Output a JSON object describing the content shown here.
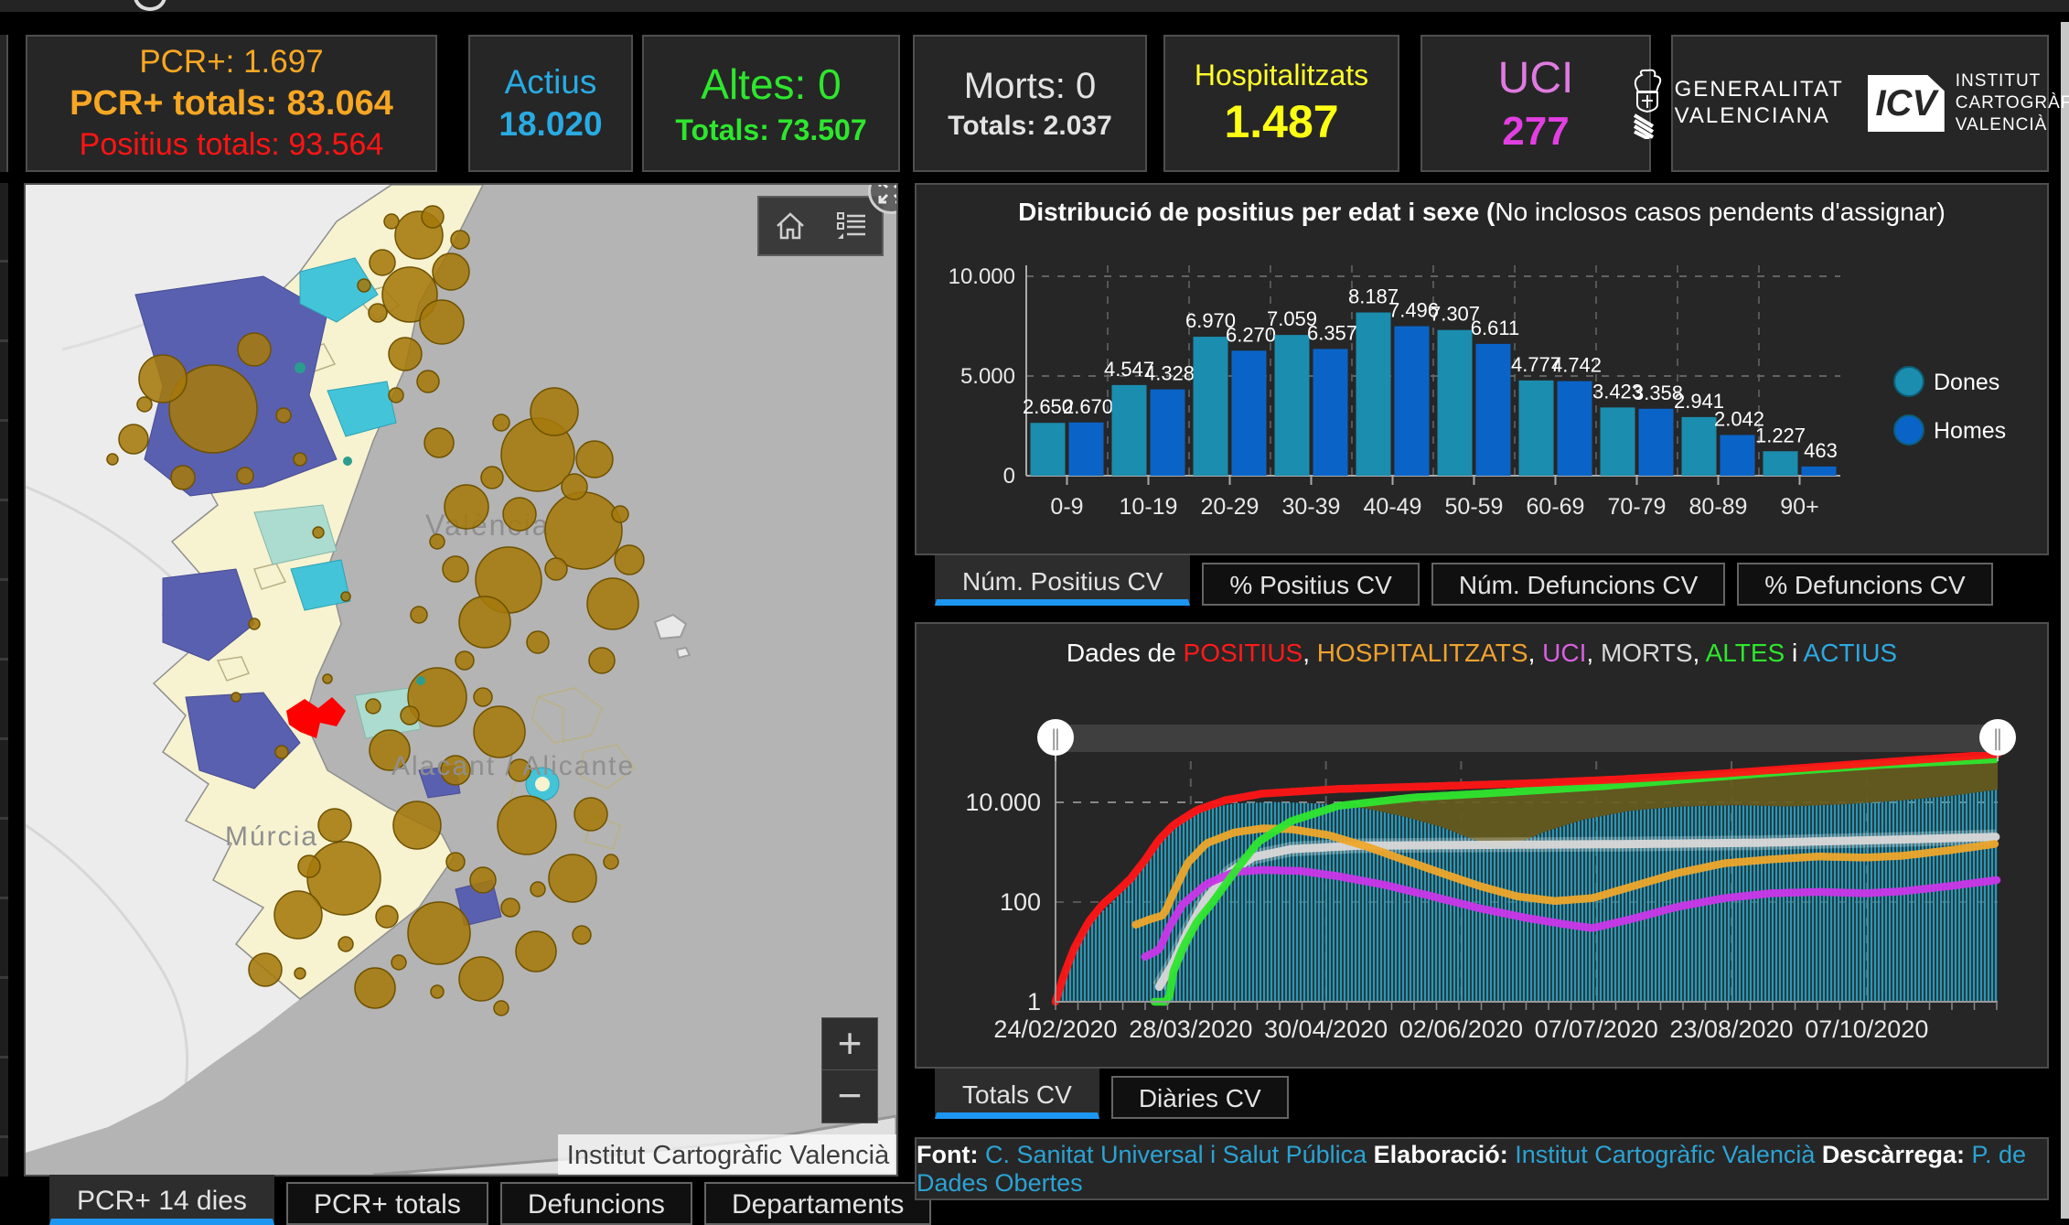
{
  "cards": {
    "pcr": {
      "line1": "PCR+: 1.697",
      "line2": "PCR+ totals: 83.064",
      "line3": "Positius totals: 93.564"
    },
    "actius": {
      "line1": "Actius",
      "line2": "18.020"
    },
    "altes": {
      "line1": "Altes: 0",
      "line2": "Totals: 73.507"
    },
    "morts": {
      "line1": "Morts: 0",
      "line2": "Totals: 2.037"
    },
    "hospitalitzats": {
      "line1": "Hospitalitzats",
      "line2": "1.487"
    },
    "uci": {
      "line1": "UCI",
      "line2": "277"
    }
  },
  "logos": {
    "generalitat_line1": "GENERALITAT",
    "generalitat_line2": "VALENCIANA",
    "icv_mark": "ICV",
    "icv_line1": "INSTITUT",
    "icv_line2": "CARTOGRÀFIC",
    "icv_line3": "VALENCIÀ"
  },
  "map": {
    "labels": {
      "valencia": "València",
      "alacant": "Alacant / Alicante",
      "murcia": "Múrcia"
    },
    "attribution": "Institut Cartogràfic Valencià",
    "zoom_in": "+",
    "zoom_out": "−",
    "slider_glyph": "∥",
    "tabs": {
      "labels": [
        "PCR+ 14 dies",
        "PCR+ totals",
        "Defuncions",
        "Departaments"
      ],
      "active": 0
    }
  },
  "age_chart": {
    "title_bold": "Distribució de positius per edat i sexe (",
    "title_normal": "No inclosos casos pendents d'assignar)",
    "tabs": {
      "labels": [
        "Núm. Positius CV",
        "% Positius CV",
        "Núm. Defuncions CV",
        "% Defuncions CV"
      ],
      "active": 0
    }
  },
  "time_chart": {
    "title_parts": [
      {
        "t": "Dades de ",
        "c": "#ffffff"
      },
      {
        "t": "POSITIUS",
        "c": "#ff1a1a"
      },
      {
        "t": ", ",
        "c": "#ffffff"
      },
      {
        "t": "HOSPITALITZATS",
        "c": "#efa22e"
      },
      {
        "t": ", ",
        "c": "#ffffff"
      },
      {
        "t": "UCI",
        "c": "#d95fe0"
      },
      {
        "t": ", ",
        "c": "#ffffff"
      },
      {
        "t": "MORTS",
        "c": "#d8d8d8"
      },
      {
        "t": ", ",
        "c": "#ffffff"
      },
      {
        "t": "ALTES",
        "c": "#2ee62e"
      },
      {
        "t": " i ",
        "c": "#ffffff"
      },
      {
        "t": "ACTIUS",
        "c": "#2da8e0"
      }
    ],
    "tabs": {
      "labels": [
        "Totals CV",
        "Diàries CV"
      ],
      "active": 0
    }
  },
  "footer": {
    "parts": [
      {
        "t": "Font: ",
        "bold": true
      },
      {
        "t": "C. Sanitat Universal i Salut Pública",
        "link": true
      },
      {
        "t": " Elaboració: ",
        "bold": true
      },
      {
        "t": "Institut Cartogràfic Valencià",
        "link": true
      },
      {
        "t": " Descàrrega: ",
        "bold": true
      },
      {
        "t": "P. de Dades Obertes",
        "link": true
      }
    ]
  },
  "colors": {
    "accent_tab": "#1d96f2",
    "dones": "#1b8dae",
    "homes": "#0a64c8",
    "positius": "#ff1515",
    "altes": "#2ee62e",
    "morts": "#d8d8d8",
    "hospitalitzats": "#eda62a",
    "uci_line": "#c936e8",
    "actius_bars": "#2a9fbf",
    "link": "#2ba3d4",
    "panel": "#262626",
    "border": "#4e4e4e"
  },
  "chart_data": [
    {
      "type": "bar",
      "title": "Distribució de positius per edat i sexe (No inclosos casos pendents d'assignar)",
      "categories": [
        "0-9",
        "10-19",
        "20-29",
        "30-39",
        "40-49",
        "50-59",
        "60-69",
        "70-79",
        "80-89",
        "90+"
      ],
      "series": [
        {
          "name": "Dones",
          "color": "#1b8dae",
          "values": [
            2650,
            4547,
            6970,
            7059,
            8187,
            7307,
            4777,
            3423,
            2941,
            1227
          ]
        },
        {
          "name": "Homes",
          "color": "#0a64c8",
          "values": [
            2670,
            4328,
            6270,
            6357,
            7496,
            6611,
            4742,
            3358,
            2042,
            463
          ]
        }
      ],
      "ylim": [
        0,
        10000
      ],
      "yticks": {
        "values": [
          10000,
          5000,
          0
        ],
        "labels": [
          "10.000",
          "5.000",
          "0"
        ]
      },
      "grid": true,
      "legend_position": "right"
    },
    {
      "type": "line",
      "title": "Dades de POSITIUS, HOSPITALITZATS, UCI, MORTS, ALTES i ACTIUS",
      "x_labels": [
        "24/02/2020",
        "28/03/2020",
        "30/04/2020",
        "02/06/2020",
        "07/07/2020",
        "23/08/2020",
        "07/10/2020"
      ],
      "y_scale": "log",
      "ylim": [
        1,
        100000
      ],
      "yticks": {
        "values": [
          10000,
          100,
          1
        ],
        "labels": [
          "10.000",
          "100",
          "1"
        ]
      },
      "series": [
        {
          "name": "ACTIUS",
          "color": "#2a9fbf",
          "render": "bars",
          "points": [
            [
              0.005,
              2
            ],
            [
              0.02,
              12
            ],
            [
              0.04,
              45
            ],
            [
              0.06,
              100
            ],
            [
              0.075,
              200
            ],
            [
              0.09,
              450
            ],
            [
              0.105,
              1100
            ],
            [
              0.12,
              2500
            ],
            [
              0.14,
              5000
            ],
            [
              0.165,
              7800
            ],
            [
              0.19,
              9500
            ],
            [
              0.23,
              10200
            ],
            [
              0.28,
              9500
            ],
            [
              0.33,
              7500
            ],
            [
              0.37,
              5200
            ],
            [
              0.41,
              3200
            ],
            [
              0.44,
              1900
            ],
            [
              0.465,
              1300
            ],
            [
              0.49,
              1500
            ],
            [
              0.52,
              2600
            ],
            [
              0.56,
              4500
            ],
            [
              0.61,
              6800
            ],
            [
              0.66,
              8200
            ],
            [
              0.72,
              8800
            ],
            [
              0.78,
              8300
            ],
            [
              0.84,
              9200
            ],
            [
              0.9,
              11000
            ],
            [
              0.95,
              13500
            ],
            [
              1,
              18020
            ]
          ]
        },
        {
          "name": "MORTS",
          "color": "#d8d8d8",
          "render": "line",
          "points": [
            [
              0.11,
              2
            ],
            [
              0.125,
              6
            ],
            [
              0.14,
              25
            ],
            [
              0.16,
              120
            ],
            [
              0.185,
              400
            ],
            [
              0.21,
              800
            ],
            [
              0.25,
              1150
            ],
            [
              0.32,
              1350
            ],
            [
              0.45,
              1400
            ],
            [
              0.6,
              1450
            ],
            [
              0.75,
              1550
            ],
            [
              0.9,
              1800
            ],
            [
              1,
              2037
            ]
          ]
        },
        {
          "name": "HOSPITALITZATS",
          "color": "#eda62a",
          "render": "line",
          "points": [
            [
              0.085,
              35
            ],
            [
              0.1,
              45
            ],
            [
              0.115,
              55
            ],
            [
              0.125,
              150
            ],
            [
              0.14,
              600
            ],
            [
              0.16,
              1500
            ],
            [
              0.19,
              2500
            ],
            [
              0.22,
              3000
            ],
            [
              0.25,
              2900
            ],
            [
              0.29,
              2200
            ],
            [
              0.33,
              1300
            ],
            [
              0.37,
              700
            ],
            [
              0.41,
              380
            ],
            [
              0.45,
              210
            ],
            [
              0.49,
              130
            ],
            [
              0.53,
              105
            ],
            [
              0.57,
              120
            ],
            [
              0.61,
              200
            ],
            [
              0.66,
              380
            ],
            [
              0.71,
              600
            ],
            [
              0.76,
              720
            ],
            [
              0.81,
              820
            ],
            [
              0.86,
              780
            ],
            [
              0.9,
              850
            ],
            [
              0.95,
              1100
            ],
            [
              1,
              1487
            ]
          ]
        },
        {
          "name": "UCI",
          "color": "#c936e8",
          "render": "line",
          "points": [
            [
              0.095,
              8
            ],
            [
              0.11,
              11
            ],
            [
              0.12,
              30
            ],
            [
              0.135,
              90
            ],
            [
              0.16,
              230
            ],
            [
              0.19,
              400
            ],
            [
              0.22,
              440
            ],
            [
              0.26,
              420
            ],
            [
              0.3,
              330
            ],
            [
              0.35,
              220
            ],
            [
              0.4,
              130
            ],
            [
              0.45,
              75
            ],
            [
              0.5,
              48
            ],
            [
              0.54,
              36
            ],
            [
              0.57,
              30
            ],
            [
              0.61,
              45
            ],
            [
              0.66,
              80
            ],
            [
              0.71,
              120
            ],
            [
              0.76,
              150
            ],
            [
              0.81,
              160
            ],
            [
              0.86,
              150
            ],
            [
              0.9,
              165
            ],
            [
              0.95,
              210
            ],
            [
              1,
              277
            ]
          ]
        },
        {
          "name": "ALTES",
          "color": "#2ee62e",
          "render": "line",
          "points": [
            [
              0.105,
              1
            ],
            [
              0.12,
              1
            ],
            [
              0.125,
              4
            ],
            [
              0.135,
              12
            ],
            [
              0.15,
              40
            ],
            [
              0.165,
              90
            ],
            [
              0.19,
              400
            ],
            [
              0.215,
              1600
            ],
            [
              0.25,
              4200
            ],
            [
              0.3,
              8500
            ],
            [
              0.38,
              12500
            ],
            [
              0.48,
              16000
            ],
            [
              0.58,
              21000
            ],
            [
              0.68,
              30000
            ],
            [
              0.78,
              42000
            ],
            [
              0.88,
              57000
            ],
            [
              1,
              73500
            ]
          ]
        },
        {
          "name": "POSITIUS",
          "color": "#ff1515",
          "render": "line",
          "points": [
            [
              0,
              1
            ],
            [
              0.01,
              4
            ],
            [
              0.02,
              12
            ],
            [
              0.035,
              40
            ],
            [
              0.05,
              90
            ],
            [
              0.065,
              160
            ],
            [
              0.08,
              300
            ],
            [
              0.095,
              700
            ],
            [
              0.11,
              1800
            ],
            [
              0.125,
              3500
            ],
            [
              0.15,
              7000
            ],
            [
              0.18,
              11000
            ],
            [
              0.22,
              15000
            ],
            [
              0.3,
              18500
            ],
            [
              0.4,
              21000
            ],
            [
              0.5,
              24000
            ],
            [
              0.6,
              29000
            ],
            [
              0.7,
              37000
            ],
            [
              0.8,
              50000
            ],
            [
              0.9,
              68000
            ],
            [
              1,
              93000
            ]
          ]
        }
      ]
    }
  ]
}
